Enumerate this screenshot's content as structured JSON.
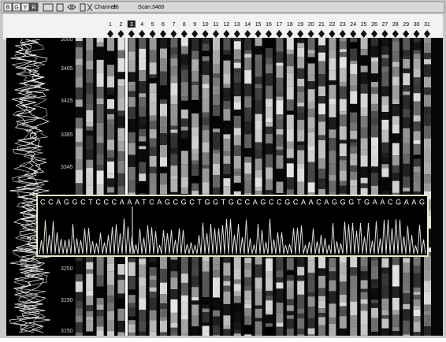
{
  "toolbar": {
    "buttons": [
      "B",
      "G",
      "Y",
      "R"
    ],
    "channel_label": "Channel:",
    "channel": "36",
    "scan_label": "Scan:",
    "scan": "3466"
  },
  "lanes": [
    "1",
    "2",
    "3",
    "4",
    "5",
    "6",
    "7",
    "8",
    "9",
    "10",
    "11",
    "12",
    "13",
    "14",
    "15",
    "16",
    "17",
    "18",
    "19",
    "20",
    "21",
    "22",
    "23",
    "24",
    "25",
    "26",
    "27",
    "28",
    "29",
    "30",
    "31"
  ],
  "scan_axis": [
    "3500",
    "3465",
    "3425",
    "3385",
    "3345",
    "3250",
    "3190",
    "3150"
  ],
  "sequence": "CCAGGCTCCCAAATCAGCGCTGGTGCCAGCCGCAACAGGGTGAACGAAG"
}
